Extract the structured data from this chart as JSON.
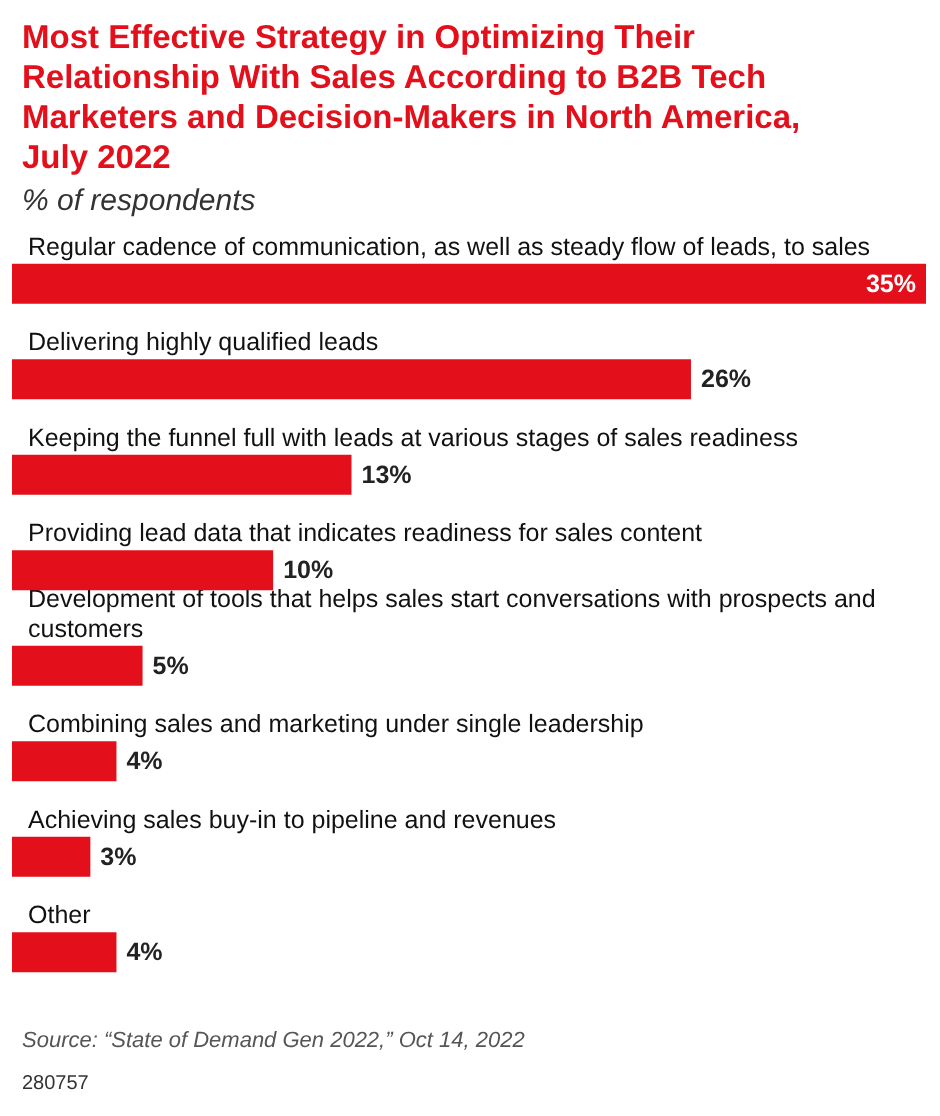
{
  "chart_data": {
    "type": "bar",
    "orientation": "horizontal",
    "title": "Most Effective Strategy in Optimizing Their Relationship With Sales According to B2B Tech Marketers and Decision-Makers in North America, July 2022",
    "subtitle": "% of respondents",
    "categories": [
      "Regular cadence of communication, as well as steady flow of leads, to sales",
      "Delivering highly qualified leads",
      "Keeping the funnel full with leads at various stages of sales readiness",
      "Providing lead data that indicates readiness for sales content",
      "Development of tools that helps sales start conversations with prospects and customers",
      "Combining sales and marketing under single leadership",
      "Achieving sales buy-in to pipeline and revenues",
      "Other"
    ],
    "values": [
      35,
      26,
      13,
      10,
      5,
      4,
      3,
      4
    ],
    "value_labels": [
      "35%",
      "26%",
      "13%",
      "10%",
      "5%",
      "4%",
      "3%",
      "4%"
    ],
    "color": "#e3101c",
    "annotations": [
      "Source: “State of Demand Gen 2022,” Oct 14, 2022",
      "280757"
    ]
  }
}
